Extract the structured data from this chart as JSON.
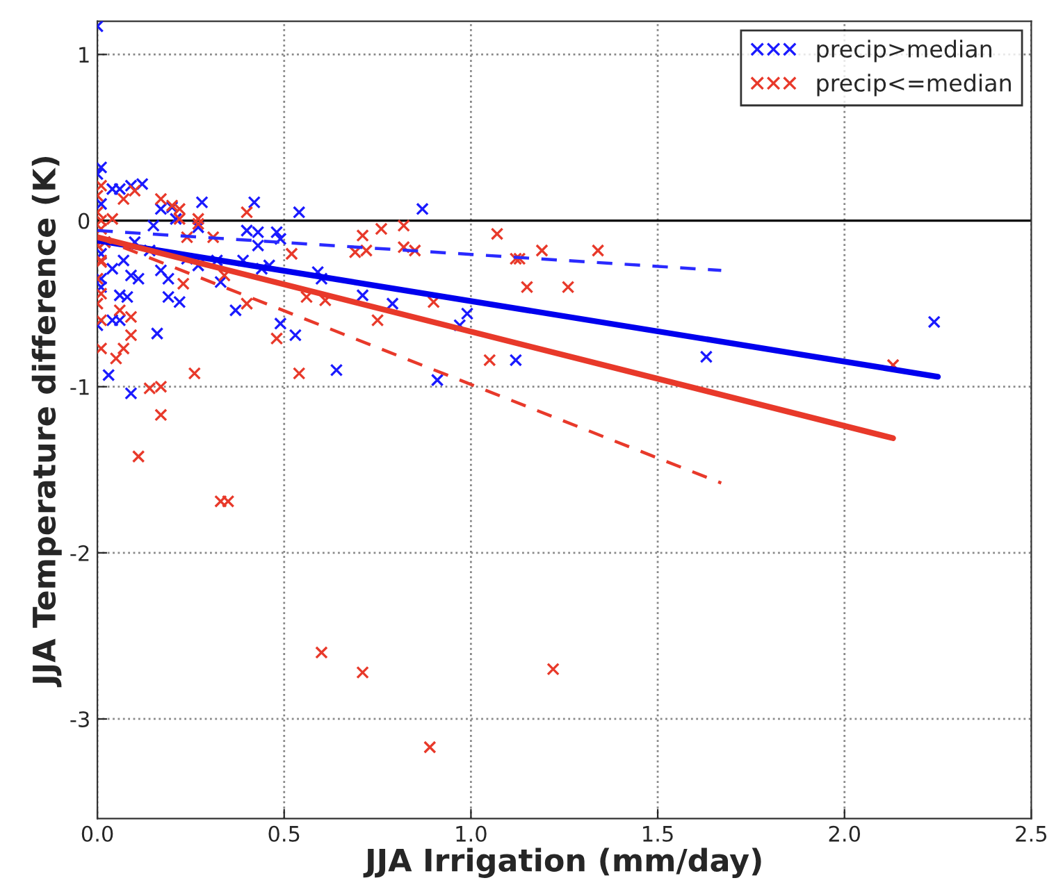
{
  "chart_data": {
    "type": "scatter",
    "xlabel": "JJA Irrigation (mm/day)",
    "ylabel": "JJA Temperature difference (K)",
    "xlim": [
      0,
      2.5
    ],
    "ylim": [
      -3.6,
      1.2
    ],
    "xticks": [
      {
        "value": 0,
        "label": "0.0"
      },
      {
        "value": 0.5,
        "label": "0.5"
      },
      {
        "value": 1.0,
        "label": "1.0"
      },
      {
        "value": 1.5,
        "label": "1.5"
      },
      {
        "value": 2.0,
        "label": "2.0"
      },
      {
        "value": 2.5,
        "label": "2.5"
      }
    ],
    "yticks": [
      -3,
      -2,
      -1,
      0,
      1
    ],
    "grid": true,
    "legend": "top right",
    "ref_lines": [
      {
        "axis": "y",
        "value": 0,
        "color": "#000000",
        "line_style": "solid"
      }
    ],
    "series": [
      {
        "name": "precip>median",
        "marker": "cross",
        "color": "#1a1aff",
        "x": [
          0.54,
          0.87,
          0.28,
          0.42,
          0.99,
          0.97,
          1.12,
          0.91,
          1.63,
          2.24,
          0.71,
          0.79,
          0.64,
          0.53,
          0.49,
          0.59,
          0.6,
          0.46,
          0.44,
          0.37,
          0.4,
          0.43,
          0.48,
          0.49,
          0.43,
          0.39,
          0.32,
          0.33,
          0.27,
          0.27,
          0.24,
          0.22,
          0.19,
          0.16,
          0.17,
          0.19,
          0.17,
          0.2,
          0.12,
          0.09,
          0.06,
          0.04,
          0.09,
          0.03,
          0.04,
          0.06,
          0.08,
          0.06,
          0.11,
          0.09,
          0.07,
          0.04,
          0.1,
          0.15,
          0.21,
          0.01,
          0.0,
          0.0,
          0.02,
          0.01,
          0.14,
          0.0,
          0.01,
          0.01,
          0.01
        ],
        "values": [
          0.05,
          0.07,
          0.11,
          0.11,
          -0.56,
          -0.63,
          -0.84,
          -0.96,
          -0.82,
          -0.61,
          -0.45,
          -0.5,
          -0.9,
          -0.69,
          -0.62,
          -0.31,
          -0.35,
          -0.27,
          -0.29,
          -0.54,
          -0.06,
          -0.07,
          -0.07,
          -0.11,
          -0.15,
          -0.24,
          -0.24,
          -0.37,
          -0.04,
          -0.27,
          -0.23,
          -0.49,
          -0.46,
          -0.68,
          -0.3,
          -0.35,
          0.07,
          0.08,
          0.22,
          0.21,
          0.19,
          0.19,
          -1.04,
          -0.93,
          -0.6,
          -0.6,
          -0.46,
          -0.45,
          -0.35,
          -0.33,
          -0.24,
          -0.29,
          -0.13,
          -0.03,
          0.01,
          0.32,
          1.17,
          -0.63,
          -0.13,
          -0.35,
          -0.18,
          0.28,
          0.1,
          -0.2,
          -0.4
        ]
      },
      {
        "name": "precip<=median",
        "marker": "cross",
        "color": "#e8392a",
        "x": [
          1.07,
          1.19,
          1.12,
          1.13,
          1.34,
          1.15,
          1.26,
          0.9,
          1.05,
          2.13,
          0.71,
          0.76,
          0.82,
          0.69,
          0.72,
          0.82,
          0.85,
          0.4,
          0.52,
          0.56,
          0.61,
          0.75,
          0.48,
          0.54,
          0.26,
          0.14,
          0.17,
          0.17,
          0.4,
          0.34,
          0.27,
          0.27,
          0.24,
          0.31,
          0.23,
          0.09,
          0.07,
          0.05,
          0.01,
          0.06,
          0.09,
          0.17,
          0.2,
          0.22,
          0.22,
          0.1,
          0.07,
          0.01,
          0.02,
          0.01,
          0.04,
          0.01,
          0.01,
          0.11,
          0.33,
          0.35,
          0.6,
          0.71,
          1.22,
          0.89,
          0.0,
          0.0,
          0.01,
          0.0,
          0.01,
          0.0,
          0.0,
          0.01
        ],
        "values": [
          -0.08,
          -0.18,
          -0.23,
          -0.23,
          -0.18,
          -0.4,
          -0.4,
          -0.49,
          -0.84,
          -0.87,
          -0.09,
          -0.05,
          -0.03,
          -0.19,
          -0.18,
          -0.16,
          -0.18,
          0.05,
          -0.2,
          -0.46,
          -0.48,
          -0.6,
          -0.71,
          -0.92,
          -0.92,
          -1.01,
          -1.0,
          -1.17,
          -0.5,
          -0.33,
          0.01,
          -0.02,
          -0.1,
          -0.1,
          -0.38,
          -0.69,
          -0.77,
          -0.83,
          -0.77,
          -0.54,
          -0.58,
          0.13,
          0.09,
          0.07,
          0.01,
          0.18,
          0.13,
          0.0,
          -0.13,
          -0.24,
          0.01,
          0.21,
          -0.44,
          -1.42,
          -1.69,
          -1.69,
          -2.6,
          -2.72,
          -2.7,
          -3.17,
          0.15,
          0.05,
          -0.05,
          -0.15,
          -0.25,
          -0.35,
          -0.5,
          -0.6
        ]
      },
      {
        "type": "line",
        "color": "#0000ee",
        "line_style": "solid",
        "x": [
          0,
          2.25
        ],
        "values": [
          -0.12,
          -0.94
        ]
      },
      {
        "type": "line",
        "color": "#e8392a",
        "line_style": "solid",
        "x": [
          0,
          2.13
        ],
        "values": [
          -0.1,
          -1.31
        ]
      },
      {
        "type": "line",
        "color": "#2a2aff",
        "line_style": "dashed",
        "x": [
          0,
          1.67
        ],
        "values": [
          -0.06,
          -0.3
        ]
      },
      {
        "type": "line",
        "color": "#e8392a",
        "line_style": "dashed",
        "x": [
          0,
          1.67
        ],
        "values": [
          -0.1,
          -1.58
        ]
      }
    ]
  }
}
